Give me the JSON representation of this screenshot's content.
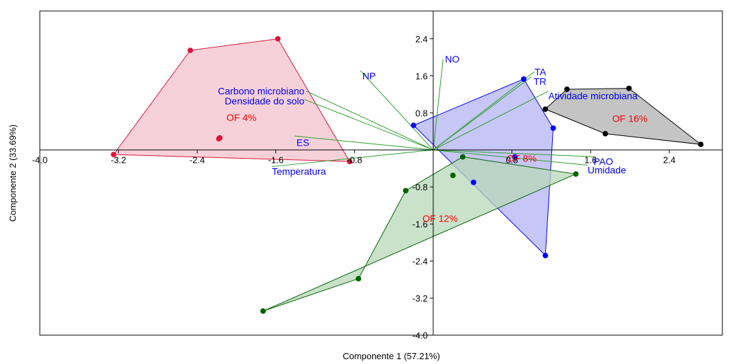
{
  "chart_data": {
    "type": "scatter",
    "xlabel": "Componente 1 (57.21%)",
    "ylabel": "Componente 2 (33.69%)",
    "xlim": [
      -4.0,
      2.94
    ],
    "ylim": [
      -4.0,
      3.0
    ],
    "xticks": [
      -4.0,
      -3.2,
      -2.4,
      -1.6,
      -0.8,
      0.8,
      1.6,
      2.4
    ],
    "xtick_labels": [
      "-4.0",
      "-3.2",
      "-2.4",
      "-1.6",
      "-0.8",
      "0.8",
      "1.6",
      "2.4"
    ],
    "yticks": [
      2.4,
      1.6,
      0.8,
      -0.8,
      -1.6,
      -2.4,
      -3.2,
      -4.0
    ],
    "ytick_labels": [
      "2.4",
      "1.6",
      "0.8",
      "-0.8",
      "-1.6",
      "-2.4",
      "-3.2",
      "-4.0"
    ],
    "grid": false,
    "groups": [
      {
        "name": "OF 4%",
        "color": "#dc143c",
        "fill": "#f4c2cc",
        "label_pos": [
          -1.95,
          0.7
        ],
        "points": [
          [
            -3.25,
            -0.1
          ],
          [
            -2.47,
            2.15
          ],
          [
            -1.58,
            2.4
          ],
          [
            -0.85,
            -0.25
          ],
          [
            -2.17,
            0.26
          ],
          [
            -2.18,
            0.24
          ]
        ],
        "hull": [
          [
            -3.25,
            -0.1
          ],
          [
            -2.47,
            2.15
          ],
          [
            -1.58,
            2.4
          ],
          [
            -0.85,
            -0.25
          ]
        ]
      },
      {
        "name": "OF 8%",
        "color": "#0000ff",
        "fill": "#b3b3f4",
        "label_pos": [
          0.9,
          -0.18
        ],
        "points": [
          [
            -0.2,
            0.53
          ],
          [
            0.92,
            1.53
          ],
          [
            1.22,
            0.47
          ],
          [
            0.41,
            -0.7
          ],
          [
            0.83,
            -0.15
          ],
          [
            1.14,
            -2.28
          ]
        ],
        "hull": [
          [
            -0.2,
            0.53
          ],
          [
            0.92,
            1.53
          ],
          [
            1.22,
            0.47
          ],
          [
            1.14,
            -2.28
          ]
        ]
      },
      {
        "name": "OF 12%",
        "color": "#006400",
        "fill": "#b8d7b8",
        "label_pos": [
          0.07,
          -1.48
        ],
        "points": [
          [
            -1.73,
            -3.48
          ],
          [
            -0.76,
            -2.78
          ],
          [
            -0.28,
            -0.88
          ],
          [
            0.3,
            -0.15
          ],
          [
            0.2,
            -0.55
          ],
          [
            1.45,
            -0.52
          ]
        ],
        "hull": [
          [
            -1.73,
            -3.48
          ],
          [
            -0.76,
            -2.78
          ],
          [
            -0.28,
            -0.88
          ],
          [
            0.3,
            -0.15
          ],
          [
            1.45,
            -0.52
          ]
        ]
      },
      {
        "name": "OF 16%",
        "color": "#000000",
        "fill": "#b0b0b0",
        "label_pos": [
          2.0,
          0.68
        ],
        "points": [
          [
            1.14,
            0.88
          ],
          [
            1.36,
            1.31
          ],
          [
            1.99,
            1.33
          ],
          [
            1.75,
            0.35
          ],
          [
            2.72,
            0.12
          ]
        ],
        "hull": [
          [
            1.14,
            0.88
          ],
          [
            1.36,
            1.31
          ],
          [
            1.99,
            1.33
          ],
          [
            2.72,
            0.12
          ],
          [
            1.75,
            0.35
          ]
        ]
      }
    ],
    "vectors": [
      {
        "name": "NO",
        "x": 0.1,
        "y": 1.96,
        "label_pos": [
          0.12,
          1.96
        ],
        "anchor": "start"
      },
      {
        "name": "NP",
        "x": -0.74,
        "y": 1.71,
        "label_pos": [
          -0.72,
          1.6
        ],
        "anchor": "start"
      },
      {
        "name": "TA",
        "x": 1.03,
        "y": 1.69,
        "label_pos": [
          1.03,
          1.69
        ],
        "anchor": "start"
      },
      {
        "name": "TR",
        "x": 1.0,
        "y": 1.58,
        "label_pos": [
          1.02,
          1.48
        ],
        "anchor": "start"
      },
      {
        "name": "Atividade microbiana",
        "x": 1.17,
        "y": 1.27,
        "label_pos": [
          1.17,
          1.17
        ],
        "anchor": "start"
      },
      {
        "name": "Carbono microbiano",
        "x": -1.29,
        "y": 1.27,
        "label_pos": [
          -1.31,
          1.27
        ],
        "anchor": "end"
      },
      {
        "name": "Densidade do solo",
        "x": -1.31,
        "y": 1.09,
        "label_pos": [
          -1.31,
          1.06
        ],
        "anchor": "end"
      },
      {
        "name": "ES",
        "x": -1.41,
        "y": 0.3,
        "label_pos": [
          -1.26,
          0.16
        ],
        "anchor": "end"
      },
      {
        "name": "Temperatura",
        "x": -1.64,
        "y": -0.36,
        "label_pos": [
          -1.64,
          -0.46
        ],
        "anchor": "start"
      },
      {
        "name": "PAO",
        "x": 1.65,
        "y": -0.15,
        "label_pos": [
          1.63,
          -0.25
        ],
        "anchor": "start"
      },
      {
        "name": "Umidade",
        "x": 1.57,
        "y": -0.33,
        "label_pos": [
          1.57,
          -0.43
        ],
        "anchor": "start"
      }
    ],
    "vector_color": "#2ca02c",
    "vector_label_color": "#0000ff",
    "group_label_color": "#ff0000"
  }
}
